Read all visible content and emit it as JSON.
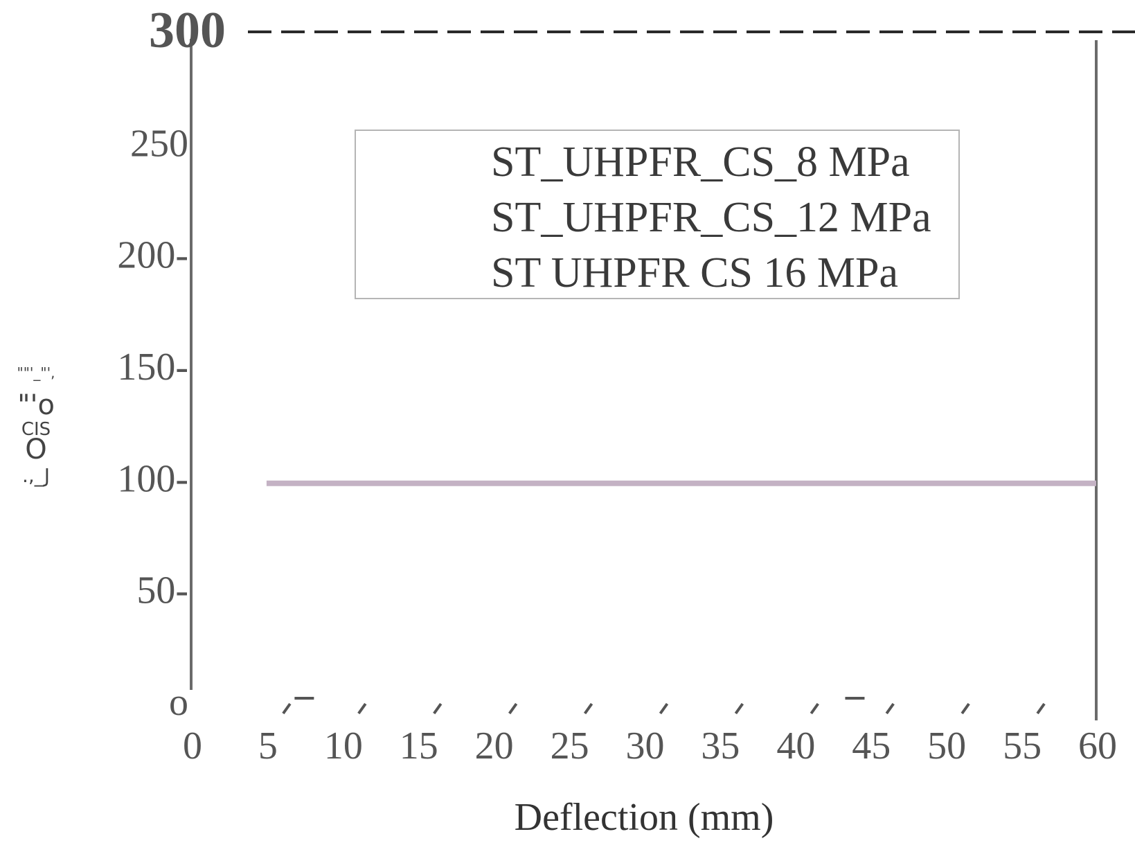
{
  "chart_data": {
    "type": "line",
    "title": "",
    "xlabel": "Deflection (mm)",
    "ylabel_glyphs": [
      "\"\"'_\"',",
      "\"'o",
      "CIS",
      "O",
      ".,_J"
    ],
    "xlim": [
      0,
      60
    ],
    "ylim": [
      0,
      300
    ],
    "x_ticks": [
      "0",
      "5",
      "10",
      "15",
      "20",
      "25",
      "30",
      "35",
      "40",
      "45",
      "50",
      "55",
      "60"
    ],
    "y_ticks": [
      "o",
      "50-",
      "100-",
      "150-",
      "200-",
      "250",
      "300"
    ],
    "y_tick_values": [
      0,
      50,
      100,
      150,
      200,
      250,
      300
    ],
    "reference_line": {
      "y": 300,
      "style": "dashed"
    },
    "legend": {
      "placement": "top-center",
      "entries": [
        "ST_UHPFR_CS_8 MPa",
        "ST_UHPFR_CS_12 MPa",
        "ST UHPFR CS 16 MPa"
      ]
    },
    "series": [
      {
        "x": [
          5,
          60
        ],
        "y": [
          98,
          98
        ],
        "color": "#c4b2c4"
      }
    ]
  }
}
